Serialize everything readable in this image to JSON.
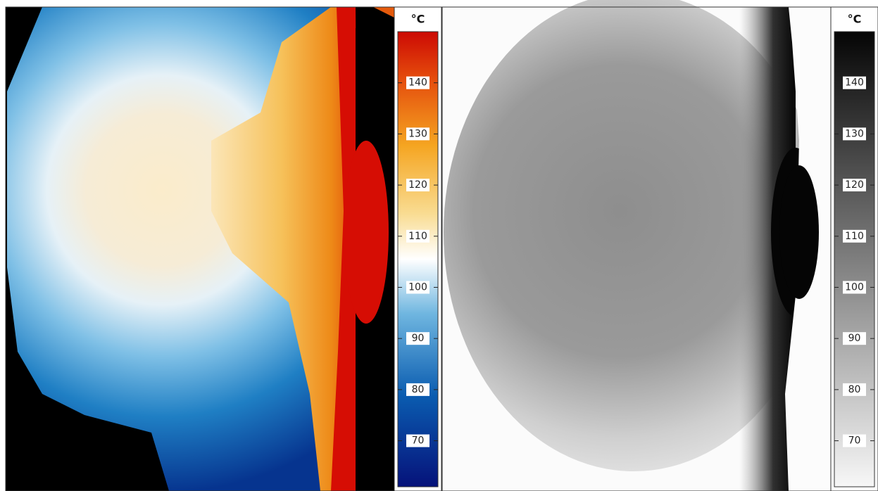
{
  "panels": [
    {
      "unit": "°C",
      "palette": "color",
      "range": [
        61,
        150
      ],
      "ticks": [
        70,
        80,
        90,
        100,
        110,
        120,
        130,
        140
      ]
    },
    {
      "unit": "°C",
      "palette": "gray",
      "range": [
        61,
        150
      ],
      "ticks": [
        70,
        80,
        90,
        100,
        110,
        120,
        130,
        140
      ]
    }
  ]
}
